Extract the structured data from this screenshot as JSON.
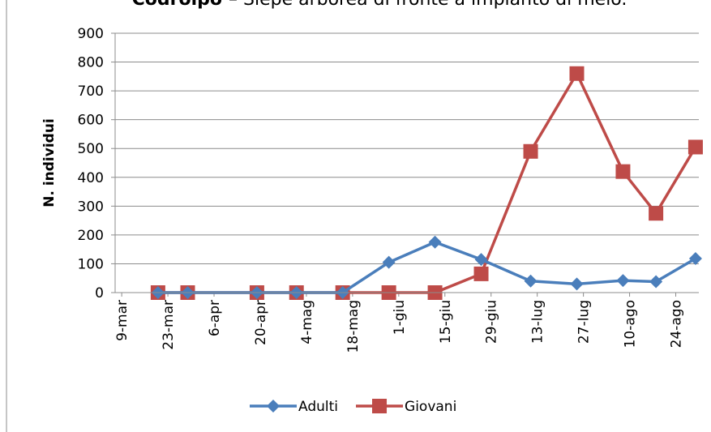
{
  "chart_data": {
    "type": "line",
    "title": "Codroipo",
    "subtitle": "– Siepe arborea di fronte a impianto di melo.",
    "y_label": "N. individui",
    "x": [
      "20-mar",
      "29-mar",
      "19-apr",
      "1-mag",
      "15-mag",
      "29-mag",
      "12-giu",
      "26-giu",
      "11-lug",
      "25-lug",
      "8-ago",
      "18-ago",
      "30-ago"
    ],
    "series": [
      {
        "name": "Adulti",
        "color": "#4a7ebb",
        "marker": "diamond",
        "values": [
          0,
          0,
          0,
          0,
          0,
          105,
          175,
          115,
          40,
          30,
          42,
          38,
          118
        ]
      },
      {
        "name": "Giovani",
        "color": "#be4b48",
        "marker": "square",
        "values": [
          0,
          0,
          0,
          0,
          0,
          0,
          0,
          65,
          490,
          760,
          420,
          275,
          505
        ]
      }
    ],
    "xlim": [
      "7-mar",
      "31-ago"
    ],
    "xticks": [
      "9-mar",
      "23-mar",
      "6-apr",
      "20-apr",
      "4-mag",
      "18-mag",
      "1-giu",
      "15-giu",
      "29-giu",
      "13-lug",
      "27-lug",
      "10-ago",
      "24-ago"
    ],
    "ylim": [
      0,
      900
    ],
    "yticks": [
      0,
      100,
      200,
      300,
      400,
      500,
      600,
      700,
      800,
      900
    ],
    "grid": true,
    "legend": "bottom"
  }
}
